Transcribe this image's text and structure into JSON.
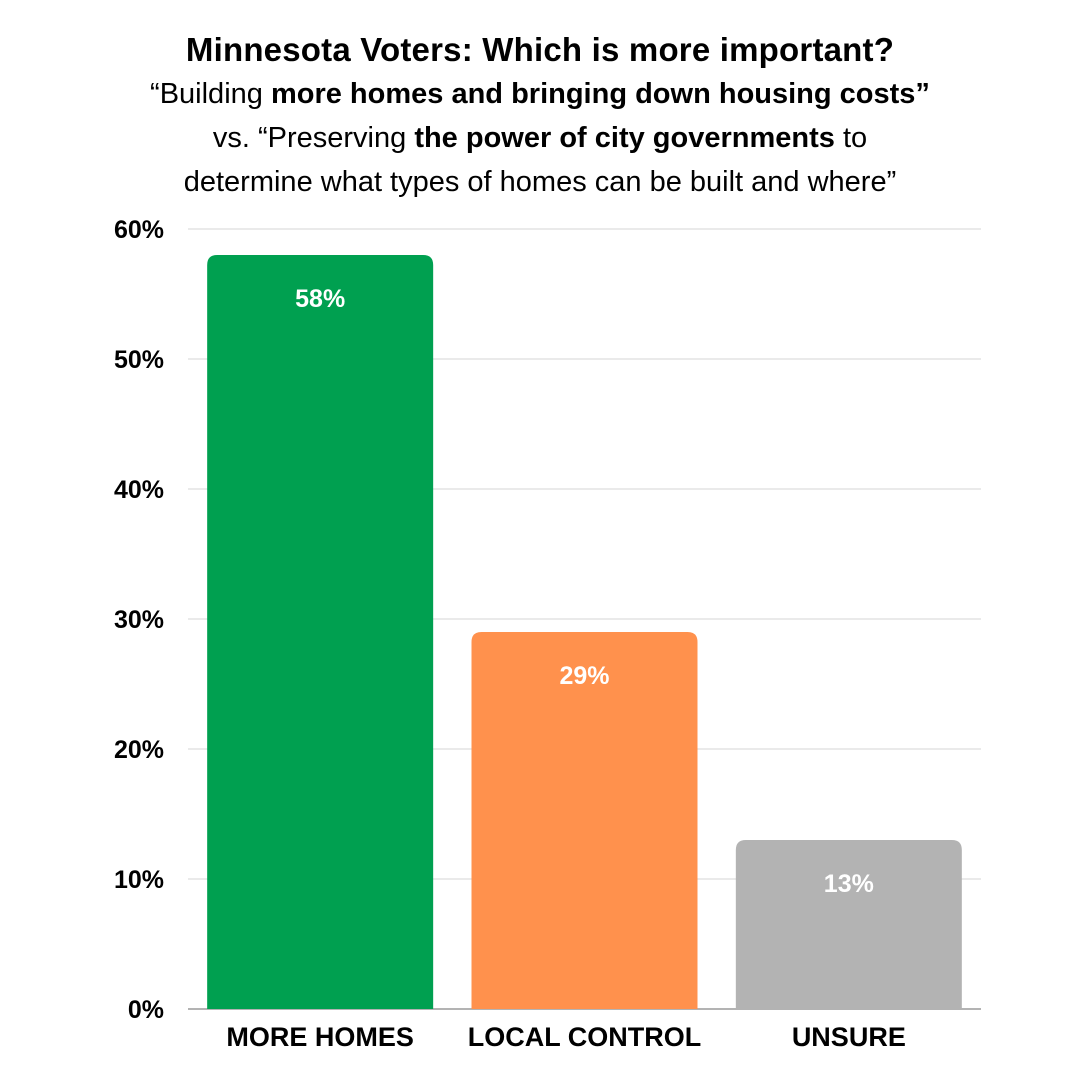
{
  "header": {
    "title": "Minnesota Voters: Which is more important?",
    "line1_pre": "“Building ",
    "line1_bold": "more homes and bringing down housing costs”",
    "line2_pre": "vs. “Preserving ",
    "line2_bold": "the power of city governments",
    "line2_post": " to",
    "line3": "determine what types of homes can be built and where”"
  },
  "chart_data": {
    "type": "bar",
    "categories": [
      "MORE HOMES",
      "LOCAL CONTROL",
      "UNSURE"
    ],
    "values": [
      58,
      29,
      13
    ],
    "data_labels": [
      "58%",
      "29%",
      "13%"
    ],
    "colors": [
      "#00a050",
      "#ff914d",
      "#b3b3b3"
    ],
    "ylim": [
      0,
      60
    ],
    "yticks": [
      0,
      10,
      20,
      30,
      40,
      50,
      60
    ],
    "ytick_labels": [
      "0%",
      "10%",
      "20%",
      "30%",
      "40%",
      "50%",
      "60%"
    ],
    "grid": true,
    "legend": "none"
  }
}
